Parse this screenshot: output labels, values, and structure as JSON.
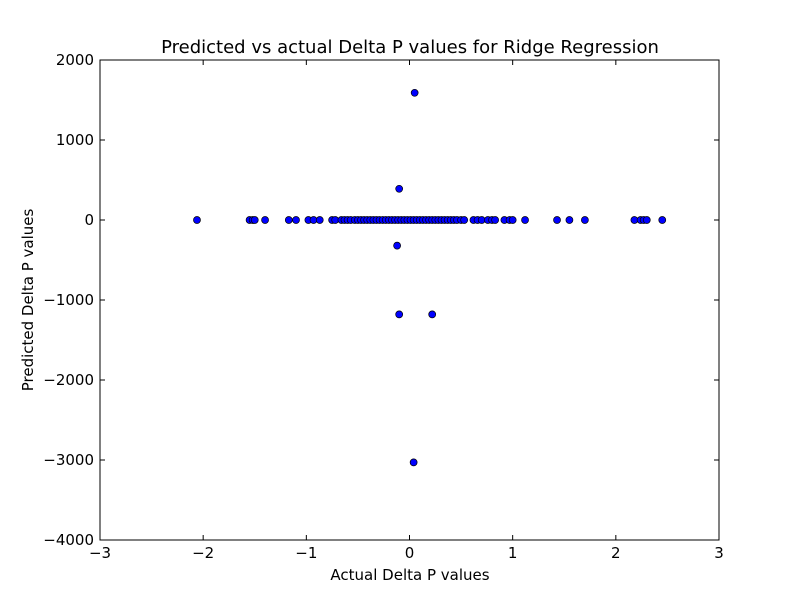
{
  "chart_data": {
    "type": "scatter",
    "title": "Predicted vs actual Delta P values for Ridge Regression",
    "xlabel": "Actual Delta P values",
    "ylabel": "Predicted Delta P values",
    "xlim": [
      -3,
      3
    ],
    "ylim": [
      -4000,
      2000
    ],
    "xticks": [
      -3,
      -2,
      -1,
      0,
      1,
      2,
      3
    ],
    "xtick_labels": [
      "−3",
      "−2",
      "−1",
      "0",
      "1",
      "2",
      "3"
    ],
    "yticks": [
      -4000,
      -3000,
      -2000,
      -1000,
      0,
      1000,
      2000
    ],
    "ytick_labels": [
      "−4000",
      "−3000",
      "−2000",
      "−1000",
      "0",
      "1000",
      "2000"
    ],
    "grid": false,
    "marker_color": "#0000ff",
    "marker_edge": "#000000",
    "points": [
      {
        "x": 0.05,
        "y": 1590
      },
      {
        "x": -0.1,
        "y": 390
      },
      {
        "x": -0.12,
        "y": -320
      },
      {
        "x": -0.1,
        "y": -1180
      },
      {
        "x": 0.22,
        "y": -1180
      },
      {
        "x": 0.04,
        "y": -3030
      },
      {
        "x": -2.06,
        "y": 0
      },
      {
        "x": -1.55,
        "y": 0
      },
      {
        "x": -1.52,
        "y": 0
      },
      {
        "x": -1.5,
        "y": 0
      },
      {
        "x": -1.4,
        "y": 0
      },
      {
        "x": -1.17,
        "y": 0
      },
      {
        "x": -1.1,
        "y": 0
      },
      {
        "x": -0.98,
        "y": 0
      },
      {
        "x": -0.93,
        "y": 0
      },
      {
        "x": -0.87,
        "y": 0
      },
      {
        "x": -0.75,
        "y": 0
      },
      {
        "x": -0.72,
        "y": 0
      },
      {
        "x": -0.66,
        "y": 0
      },
      {
        "x": -0.63,
        "y": 0
      },
      {
        "x": -0.6,
        "y": 0
      },
      {
        "x": -0.57,
        "y": 0
      },
      {
        "x": -0.53,
        "y": 0
      },
      {
        "x": -0.5,
        "y": 0
      },
      {
        "x": -0.47,
        "y": 0
      },
      {
        "x": -0.44,
        "y": 0
      },
      {
        "x": -0.41,
        "y": 0
      },
      {
        "x": -0.38,
        "y": 0
      },
      {
        "x": -0.35,
        "y": 0
      },
      {
        "x": -0.32,
        "y": 0
      },
      {
        "x": -0.29,
        "y": 0
      },
      {
        "x": -0.26,
        "y": 0
      },
      {
        "x": -0.23,
        "y": 0
      },
      {
        "x": -0.2,
        "y": 0
      },
      {
        "x": -0.17,
        "y": 0
      },
      {
        "x": -0.14,
        "y": 0
      },
      {
        "x": -0.11,
        "y": 0
      },
      {
        "x": -0.08,
        "y": 0
      },
      {
        "x": -0.05,
        "y": 0
      },
      {
        "x": -0.02,
        "y": 0
      },
      {
        "x": 0.01,
        "y": 0
      },
      {
        "x": 0.04,
        "y": 0
      },
      {
        "x": 0.07,
        "y": 0
      },
      {
        "x": 0.1,
        "y": 0
      },
      {
        "x": 0.13,
        "y": 0
      },
      {
        "x": 0.16,
        "y": 0
      },
      {
        "x": 0.19,
        "y": 0
      },
      {
        "x": 0.22,
        "y": 0
      },
      {
        "x": 0.25,
        "y": 0
      },
      {
        "x": 0.28,
        "y": 0
      },
      {
        "x": 0.31,
        "y": 0
      },
      {
        "x": 0.34,
        "y": 0
      },
      {
        "x": 0.37,
        "y": 0
      },
      {
        "x": 0.4,
        "y": 0
      },
      {
        "x": 0.43,
        "y": 0
      },
      {
        "x": 0.46,
        "y": 0
      },
      {
        "x": 0.5,
        "y": 0
      },
      {
        "x": 0.53,
        "y": 0
      },
      {
        "x": 0.62,
        "y": 0
      },
      {
        "x": 0.66,
        "y": 0
      },
      {
        "x": 0.7,
        "y": 0
      },
      {
        "x": 0.76,
        "y": 0
      },
      {
        "x": 0.8,
        "y": 0
      },
      {
        "x": 0.83,
        "y": 0
      },
      {
        "x": 0.92,
        "y": 0
      },
      {
        "x": 0.97,
        "y": 0
      },
      {
        "x": 1.0,
        "y": 0
      },
      {
        "x": 1.12,
        "y": 0
      },
      {
        "x": 1.43,
        "y": 0
      },
      {
        "x": 1.55,
        "y": 0
      },
      {
        "x": 1.7,
        "y": 0
      },
      {
        "x": 2.18,
        "y": 0
      },
      {
        "x": 2.24,
        "y": 0
      },
      {
        "x": 2.27,
        "y": 0
      },
      {
        "x": 2.3,
        "y": 0
      },
      {
        "x": 2.45,
        "y": 0
      }
    ]
  }
}
